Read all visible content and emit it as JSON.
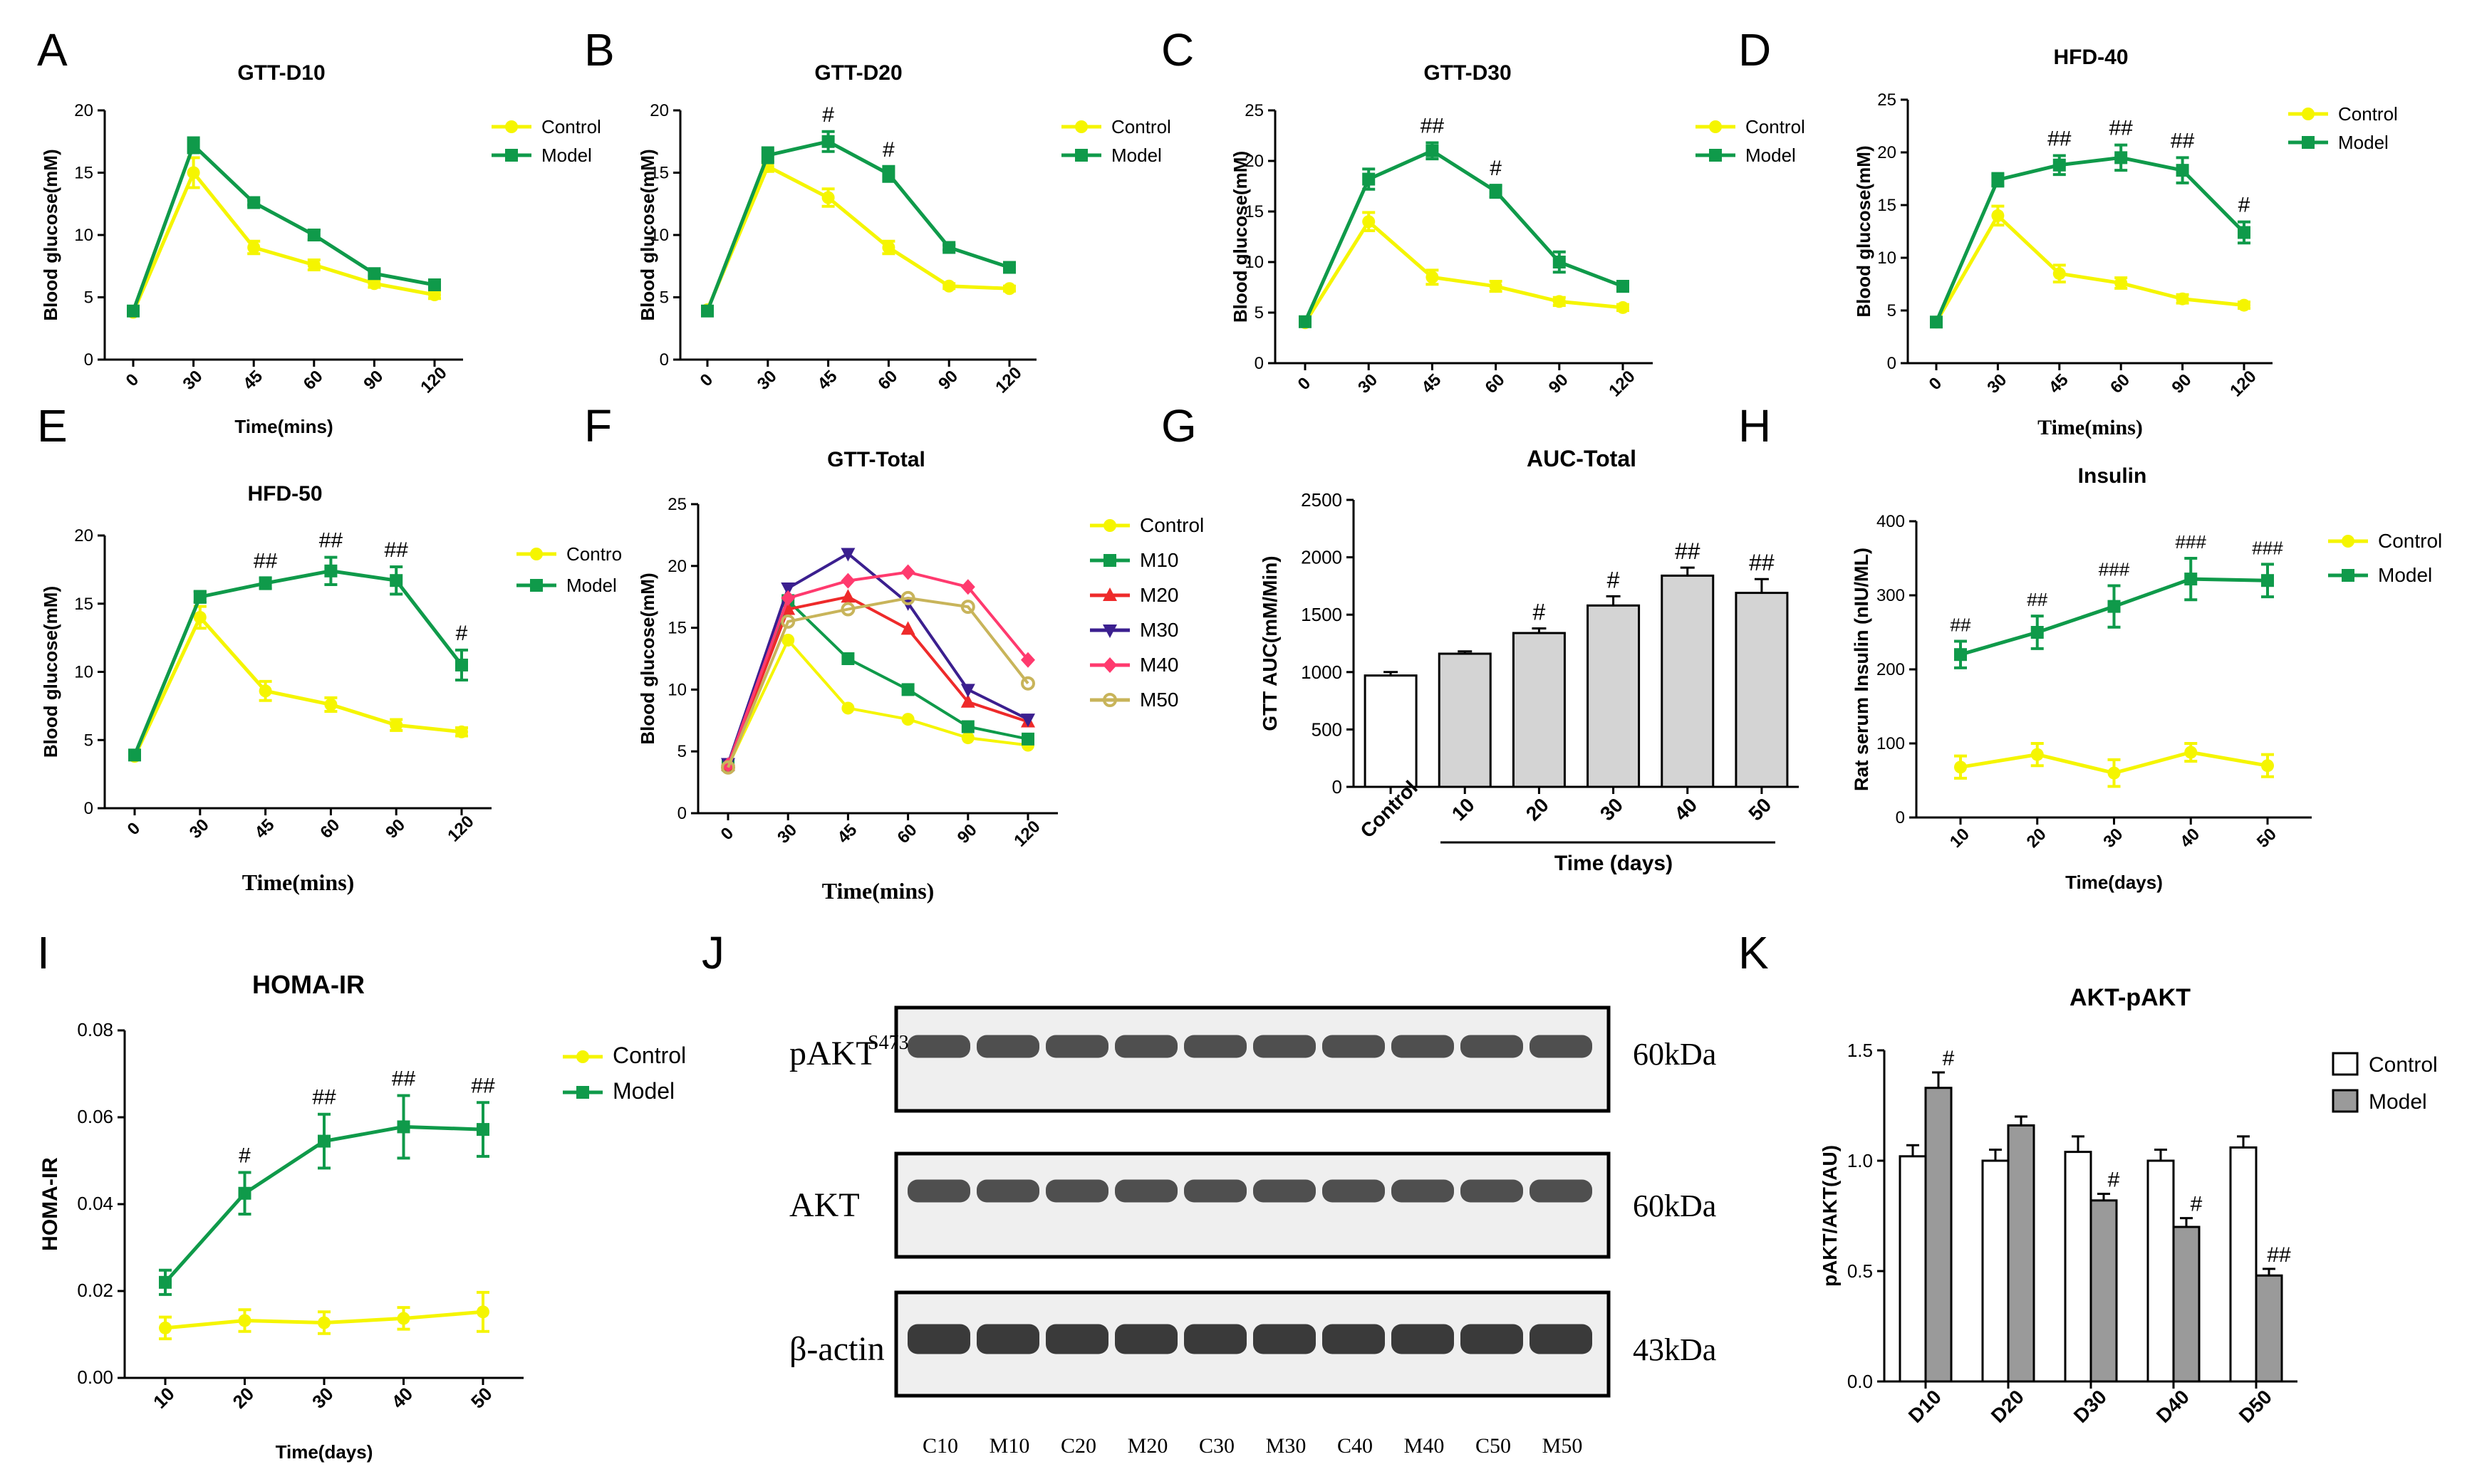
{
  "figure": {
    "panel_letters": [
      "A",
      "B",
      "C",
      "D",
      "E",
      "F",
      "G",
      "H",
      "I",
      "J",
      "K"
    ],
    "time_mins_ticks": [
      "0",
      "30",
      "45",
      "60",
      "90",
      "120"
    ]
  },
  "colors": {
    "control": "#f5f500",
    "model": "#0f9a4a",
    "m20": "#ee2a2a",
    "m30": "#3b1f8f",
    "m40": "#ff3a6e",
    "m50": "#c8b45a",
    "bar_gray": "#d4d4d4",
    "bar_dark_gray": "#9a9a9a"
  },
  "chart_data": [
    {
      "panel": "A",
      "type": "line",
      "title": "GTT-D10",
      "xlabel": "Time(mins)",
      "ylabel": "Blood glucose(mM)",
      "categories": [
        "0",
        "30",
        "45",
        "60",
        "90",
        "120"
      ],
      "ylim": [
        0,
        20
      ],
      "yticks": [
        0,
        5,
        10,
        15,
        20
      ],
      "legend": [
        "Control",
        "Model"
      ],
      "series": [
        {
          "name": "Control",
          "values": [
            3.8,
            15.0,
            9.0,
            7.6,
            6.1,
            5.2
          ],
          "err": [
            0.2,
            1.2,
            0.5,
            0.4,
            0.3,
            0.3
          ]
        },
        {
          "name": "Model",
          "values": [
            3.9,
            17.2,
            12.6,
            10.0,
            6.9,
            6.0
          ],
          "err": [
            0.2,
            0.6,
            0.2,
            0.4,
            0.2,
            0.4
          ]
        }
      ],
      "annotations": []
    },
    {
      "panel": "B",
      "type": "line",
      "title": "GTT-D20",
      "xlabel": "",
      "ylabel": "Blood glucose(mM)",
      "categories": [
        "0",
        "30",
        "45",
        "60",
        "90",
        "120"
      ],
      "ylim": [
        0,
        20
      ],
      "yticks": [
        0,
        5,
        10,
        15,
        20
      ],
      "legend": [
        "Control",
        "Model"
      ],
      "series": [
        {
          "name": "Control",
          "values": [
            4.0,
            15.5,
            13.0,
            9.0,
            5.9,
            5.7
          ],
          "err": [
            0.2,
            0.4,
            0.7,
            0.5,
            0.2,
            0.2
          ]
        },
        {
          "name": "Model",
          "values": [
            3.9,
            16.4,
            17.5,
            14.9,
            9.0,
            7.4
          ],
          "err": [
            0.2,
            0.6,
            0.8,
            0.6,
            0.2,
            0.2
          ]
        }
      ],
      "annotations": [
        "",
        "",
        "#",
        "#",
        "",
        ""
      ]
    },
    {
      "panel": "C",
      "type": "line",
      "title": "GTT-D30",
      "xlabel": "",
      "ylabel": "Blood glucose(mM)",
      "categories": [
        "0",
        "30",
        "45",
        "60",
        "90",
        "120"
      ],
      "ylim": [
        0,
        25
      ],
      "yticks": [
        0,
        5,
        10,
        15,
        20,
        25
      ],
      "legend": [
        "Control",
        "Model"
      ],
      "series": [
        {
          "name": "Control",
          "values": [
            4.0,
            14.0,
            8.5,
            7.6,
            6.1,
            5.5
          ],
          "err": [
            0.2,
            0.9,
            0.7,
            0.5,
            0.4,
            0.3
          ]
        },
        {
          "name": "Model",
          "values": [
            4.1,
            18.2,
            21.0,
            17.0,
            10.0,
            7.6
          ],
          "err": [
            0.2,
            1.0,
            0.8,
            0.6,
            1.0,
            0.5
          ]
        }
      ],
      "annotations": [
        "",
        "",
        "##",
        "#",
        "",
        ""
      ]
    },
    {
      "panel": "D",
      "type": "line",
      "title": "HFD-40",
      "xlabel": "Time(mins)",
      "ylabel": "Blood glucose(mM)",
      "categories": [
        "0",
        "30",
        "45",
        "60",
        "90",
        "120"
      ],
      "ylim": [
        0,
        25
      ],
      "yticks": [
        0,
        5,
        10,
        15,
        20,
        25
      ],
      "legend": [
        "Control",
        "Model"
      ],
      "series": [
        {
          "name": "Control",
          "values": [
            3.9,
            14.0,
            8.5,
            7.6,
            6.1,
            5.5
          ],
          "err": [
            0.2,
            0.9,
            0.8,
            0.5,
            0.4,
            0.3
          ]
        },
        {
          "name": "Model",
          "values": [
            3.9,
            17.4,
            18.8,
            19.5,
            18.3,
            12.4
          ],
          "err": [
            0.2,
            0.6,
            0.9,
            1.2,
            1.2,
            1.0
          ]
        }
      ],
      "annotations": [
        "",
        "",
        "##",
        "##",
        "##",
        "#"
      ]
    },
    {
      "panel": "E",
      "type": "line",
      "title": "HFD-50",
      "xlabel": "Time(mins)",
      "ylabel": "Blood glucose(mM)",
      "categories": [
        "0",
        "30",
        "45",
        "60",
        "90",
        "120"
      ],
      "ylim": [
        0,
        20
      ],
      "yticks": [
        0,
        5,
        10,
        15,
        20
      ],
      "legend": [
        "Contro",
        "Model"
      ],
      "series": [
        {
          "name": "Control",
          "values": [
            3.8,
            14.0,
            8.6,
            7.6,
            6.1,
            5.6
          ],
          "err": [
            0.2,
            0.8,
            0.7,
            0.5,
            0.4,
            0.3
          ]
        },
        {
          "name": "Model",
          "values": [
            3.9,
            15.5,
            16.5,
            17.4,
            16.7,
            10.5
          ],
          "err": [
            0.2,
            0.4,
            0.4,
            1.0,
            1.0,
            1.1
          ]
        }
      ],
      "annotations": [
        "",
        "",
        "##",
        "##",
        "##",
        "#"
      ]
    },
    {
      "panel": "F",
      "type": "line",
      "title": "GTT-Total",
      "xlabel": "Time(mins)",
      "ylabel": "Blood glucose(mM)",
      "categories": [
        "0",
        "30",
        "45",
        "60",
        "90",
        "120"
      ],
      "ylim": [
        0,
        25
      ],
      "yticks": [
        0,
        5,
        10,
        15,
        20,
        25
      ],
      "legend": [
        "Control",
        "M10",
        "M20",
        "M30",
        "M40",
        "M50"
      ],
      "series": [
        {
          "name": "Control",
          "values": [
            3.8,
            14.0,
            8.5,
            7.6,
            6.1,
            5.5
          ]
        },
        {
          "name": "M10",
          "values": [
            3.9,
            17.2,
            12.5,
            10.0,
            7.0,
            6.0
          ]
        },
        {
          "name": "M20",
          "values": [
            3.9,
            16.5,
            17.5,
            14.9,
            9.0,
            7.4
          ]
        },
        {
          "name": "M30",
          "values": [
            4.0,
            18.2,
            21.0,
            17.0,
            10.0,
            7.6
          ]
        },
        {
          "name": "M40",
          "values": [
            3.9,
            17.4,
            18.8,
            19.5,
            18.3,
            12.4
          ]
        },
        {
          "name": "M50",
          "values": [
            3.7,
            15.5,
            16.5,
            17.4,
            16.7,
            10.5
          ]
        }
      ]
    },
    {
      "panel": "G",
      "type": "bar",
      "title": "AUC-Total",
      "xlabel": "Time (days)",
      "ylabel": "GTT AUC(mM/Min)",
      "categories": [
        "Control",
        "10",
        "20",
        "30",
        "40",
        "50"
      ],
      "values": [
        970,
        1160,
        1340,
        1580,
        1840,
        1690
      ],
      "err": [
        30,
        20,
        40,
        80,
        70,
        120
      ],
      "ylim": [
        0,
        2500
      ],
      "yticks": [
        0,
        500,
        1000,
        1500,
        2000,
        2500
      ],
      "annotations": [
        "",
        "",
        "#",
        "#",
        "##",
        "##"
      ]
    },
    {
      "panel": "H",
      "type": "line",
      "title": "Insulin",
      "xlabel": "Time(days)",
      "ylabel": "Rat serum Insulin (nIU/ML)",
      "categories": [
        "10",
        "20",
        "30",
        "40",
        "50"
      ],
      "ylim": [
        0,
        400
      ],
      "yticks": [
        0,
        100,
        200,
        300,
        400
      ],
      "legend": [
        "Control",
        "Model"
      ],
      "series": [
        {
          "name": "Control",
          "values": [
            68,
            85,
            60,
            88,
            70
          ],
          "err": [
            15,
            15,
            18,
            12,
            15
          ]
        },
        {
          "name": "Model",
          "values": [
            220,
            250,
            285,
            322,
            320
          ],
          "err": [
            18,
            22,
            28,
            28,
            22
          ]
        }
      ],
      "annotations": [
        "##",
        "##",
        "###",
        "###",
        "###"
      ]
    },
    {
      "panel": "I",
      "type": "line",
      "title": "HOMA-IR",
      "xlabel": "Time(days)",
      "ylabel": "HOMA-IR",
      "categories": [
        "10",
        "20",
        "30",
        "40",
        "50"
      ],
      "ylim": [
        0,
        0.08
      ],
      "yticks": [
        "0.00",
        "0.02",
        "0.04",
        "0.06",
        "0.08"
      ],
      "legend": [
        "Control",
        "Model"
      ],
      "series": [
        {
          "name": "Control",
          "values": [
            0.0115,
            0.0132,
            0.0127,
            0.0137,
            0.0152
          ],
          "err": [
            0.0025,
            0.0025,
            0.0025,
            0.0025,
            0.0045
          ]
        },
        {
          "name": "Model",
          "values": [
            0.022,
            0.0425,
            0.0545,
            0.0578,
            0.0572
          ],
          "err": [
            0.0028,
            0.0048,
            0.0062,
            0.0072,
            0.0062
          ]
        }
      ],
      "annotations": [
        "",
        "#",
        "##",
        "##",
        "##"
      ]
    },
    {
      "panel": "K",
      "type": "bar",
      "title": "AKT-pAKT",
      "xlabel": "",
      "ylabel": "pAKT/AKT(AU)",
      "categories": [
        "D10",
        "D20",
        "D30",
        "D40",
        "D50"
      ],
      "ylim": [
        0,
        1.5
      ],
      "yticks": [
        "0.0",
        "0.5",
        "1.0",
        "1.5"
      ],
      "legend": [
        "Control",
        "Model"
      ],
      "series": [
        {
          "name": "Control",
          "values": [
            1.02,
            1.0,
            1.04,
            1.0,
            1.06
          ],
          "err": [
            0.05,
            0.05,
            0.07,
            0.05,
            0.05
          ]
        },
        {
          "name": "Model",
          "values": [
            1.33,
            1.16,
            0.82,
            0.7,
            0.48
          ],
          "err": [
            0.07,
            0.04,
            0.03,
            0.04,
            0.03
          ]
        }
      ],
      "annotations": [
        "#",
        "",
        "#",
        "#",
        "##"
      ]
    }
  ],
  "western_blot": {
    "panel": "J",
    "rows": [
      {
        "label": "pAKT",
        "superscript": "S473",
        "size": "60kDa"
      },
      {
        "label": "AKT",
        "superscript": "",
        "size": "60kDa"
      },
      {
        "label": "β-actin",
        "superscript": "",
        "size": "43kDa"
      }
    ],
    "lanes": [
      "C10",
      "M10",
      "C20",
      "M20",
      "C30",
      "M30",
      "C40",
      "M40",
      "C50",
      "M50"
    ]
  }
}
